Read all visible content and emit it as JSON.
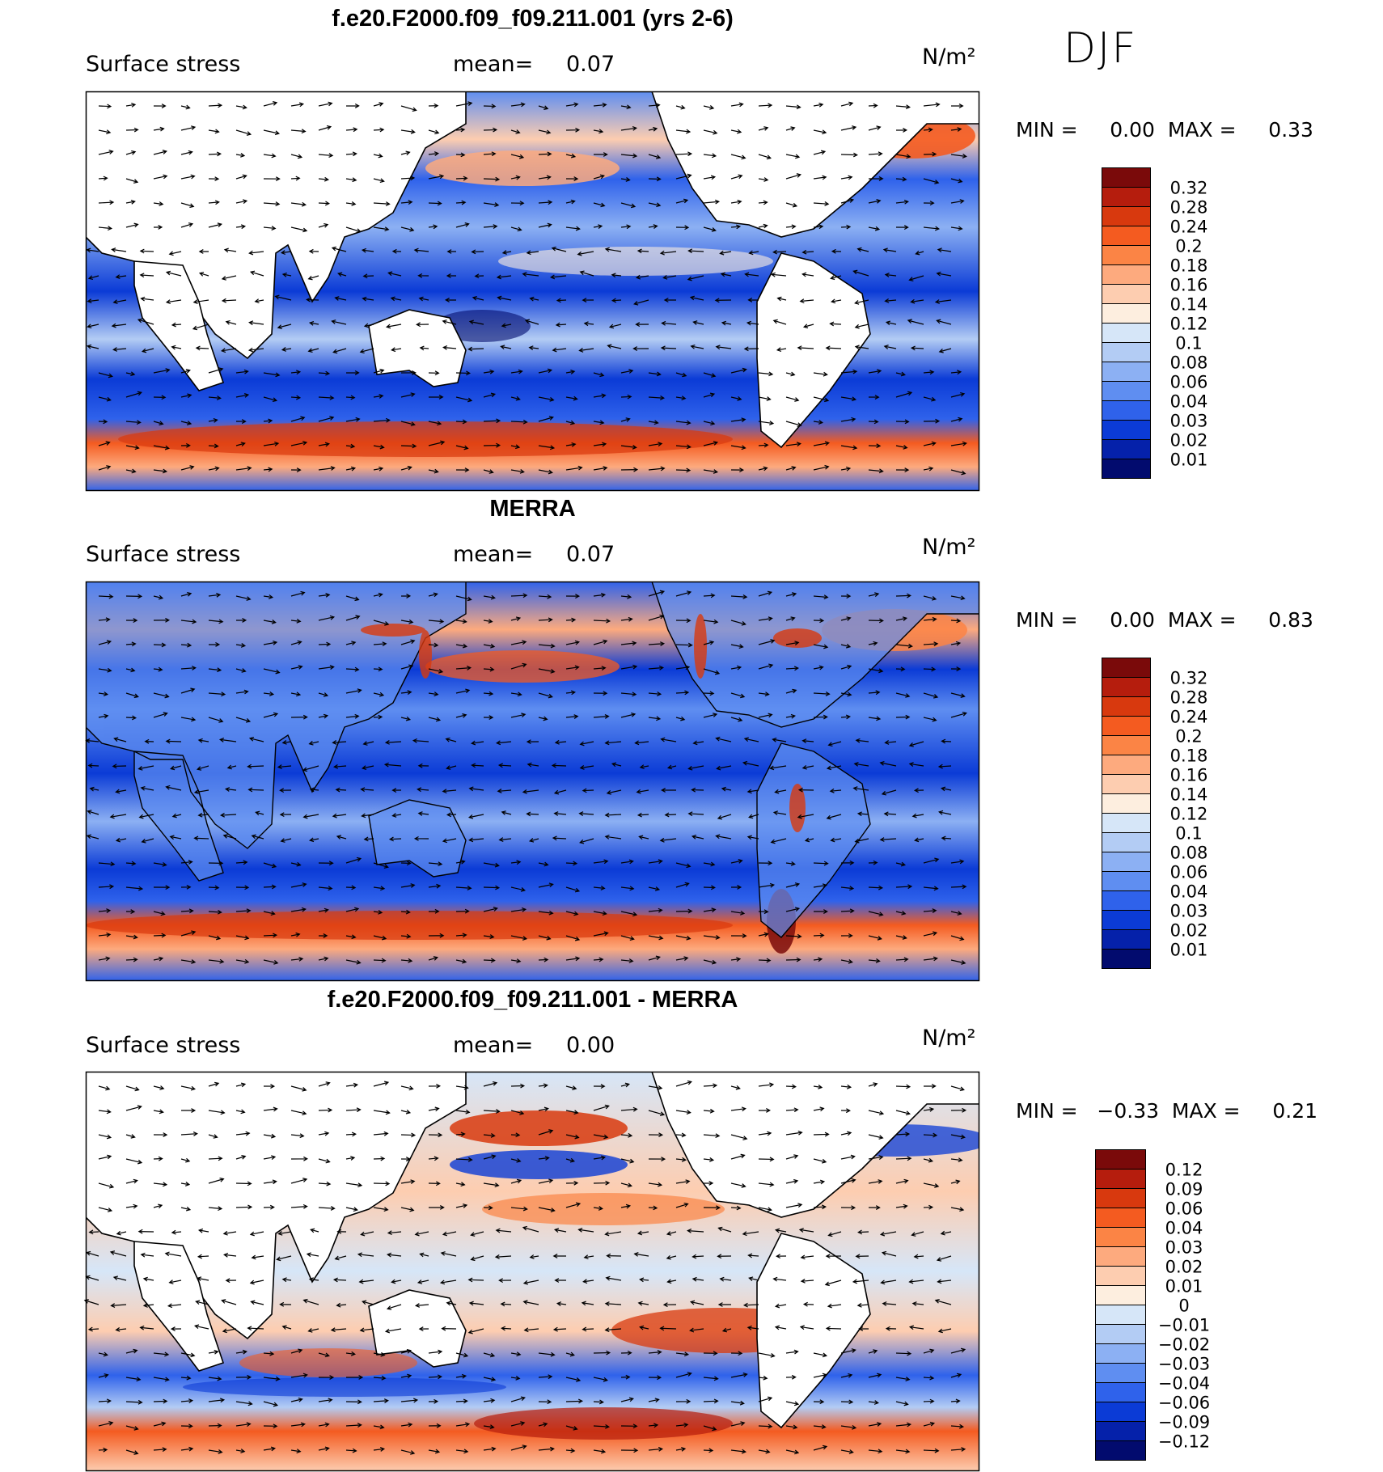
{
  "season": "DJF",
  "panels": [
    {
      "title": "f.e20.F2000.f09_f09.211.001 (yrs 2-6)",
      "variable": "Surface stress",
      "mean_label": "mean=",
      "mean": "0.07",
      "units": "N/m²",
      "min_label": "MIN =",
      "min": "0.00",
      "max_label": "MAX =",
      "max": "0.33",
      "colorbar": {
        "levels": [
          "0.32",
          "0.28",
          "0.24",
          "0.2",
          "0.18",
          "0.16",
          "0.14",
          "0.12",
          "0.1",
          "0.08",
          "0.06",
          "0.04",
          "0.03",
          "0.02",
          "0.01"
        ],
        "colors": [
          "#7a0a0a",
          "#b51d0d",
          "#d8390e",
          "#f45b20",
          "#fb8445",
          "#fdaa7e",
          "#fdcdb0",
          "#fdeedf",
          "#d6e6f8",
          "#b3ccf4",
          "#8cb0f3",
          "#5f8ef1",
          "#2f62eb",
          "#0b3bd6",
          "#0521aa",
          "#020b6e"
        ]
      }
    },
    {
      "title": "MERRA",
      "variable": "Surface stress",
      "mean_label": "mean=",
      "mean": "0.07",
      "units": "N/m²",
      "min_label": "MIN =",
      "min": "0.00",
      "max_label": "MAX =",
      "max": "0.83",
      "colorbar": {
        "levels": [
          "0.32",
          "0.28",
          "0.24",
          "0.2",
          "0.18",
          "0.16",
          "0.14",
          "0.12",
          "0.1",
          "0.08",
          "0.06",
          "0.04",
          "0.03",
          "0.02",
          "0.01"
        ],
        "colors": [
          "#7a0a0a",
          "#b51d0d",
          "#d8390e",
          "#f45b20",
          "#fb8445",
          "#fdaa7e",
          "#fdcdb0",
          "#fdeedf",
          "#d6e6f8",
          "#b3ccf4",
          "#8cb0f3",
          "#5f8ef1",
          "#2f62eb",
          "#0b3bd6",
          "#0521aa",
          "#020b6e"
        ]
      }
    },
    {
      "title": "f.e20.F2000.f09_f09.211.001 - MERRA",
      "variable": "Surface stress",
      "mean_label": "mean=",
      "mean": "0.00",
      "units": "N/m²",
      "min_label": "MIN =",
      "min": "−0.33",
      "max_label": "MAX =",
      "max": "0.21",
      "colorbar": {
        "levels": [
          "0.12",
          "0.09",
          "0.06",
          "0.04",
          "0.03",
          "0.02",
          "0.01",
          "0",
          "−0.01",
          "−0.02",
          "−0.03",
          "−0.04",
          "−0.06",
          "−0.09",
          "−0.12"
        ],
        "colors": [
          "#7a0a0a",
          "#b51d0d",
          "#d8390e",
          "#f45b20",
          "#fb8445",
          "#fdaa7e",
          "#fdcdb0",
          "#fdeedf",
          "#d6e6f8",
          "#b3ccf4",
          "#8cb0f3",
          "#5f8ef1",
          "#2f62eb",
          "#0b3bd6",
          "#0521aa",
          "#020b6e"
        ]
      }
    }
  ]
}
